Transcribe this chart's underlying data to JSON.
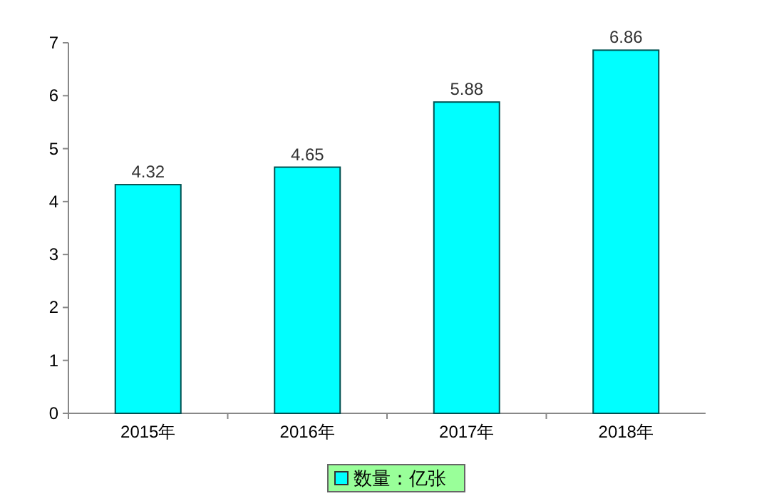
{
  "chart_data": {
    "type": "bar",
    "categories": [
      "2015年",
      "2016年",
      "2017年",
      "2018年"
    ],
    "series": [
      {
        "name": "数量：亿张",
        "color": "#00ffff",
        "values": [
          4.32,
          4.65,
          5.88,
          6.86
        ]
      }
    ],
    "ylim": [
      0,
      7
    ],
    "yticks": [
      0,
      1,
      2,
      3,
      4,
      5,
      6,
      7
    ],
    "data_labels": true,
    "legend": "bottom"
  }
}
